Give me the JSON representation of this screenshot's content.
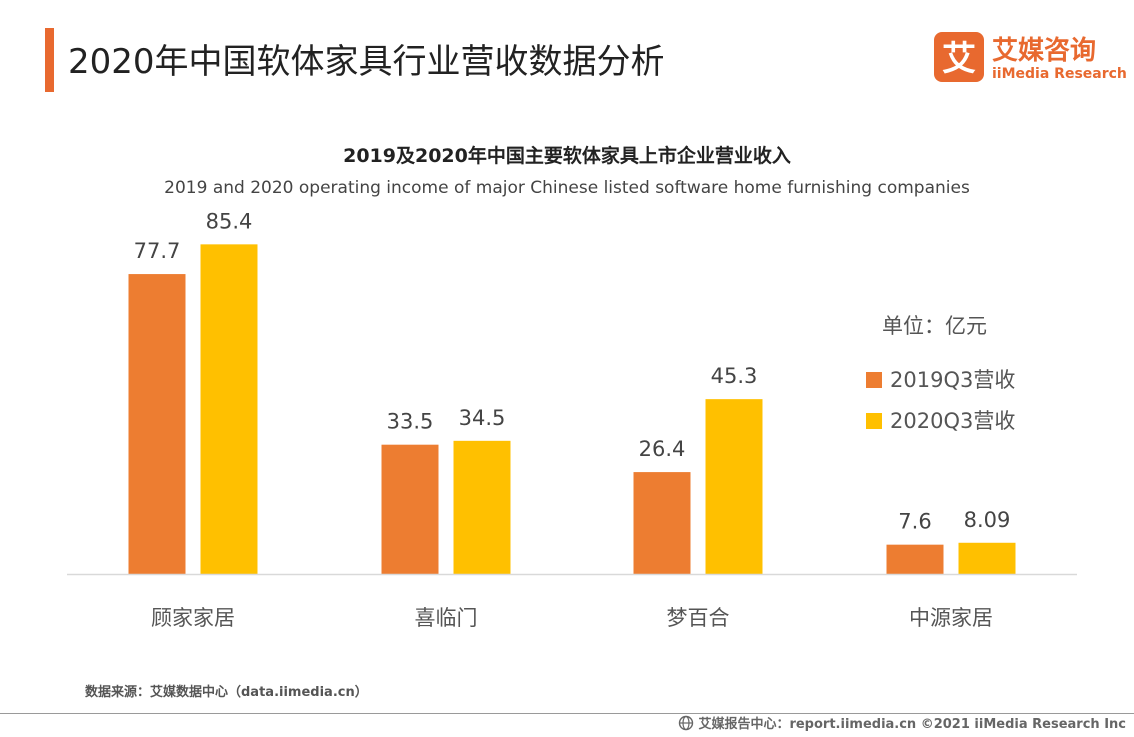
{
  "page_title": "2020年中国软体家具行业营收数据分析",
  "logo": {
    "cn": "艾媒咨询",
    "en": "iiMedia Research",
    "glyph": "艾"
  },
  "colors": {
    "accent": "#E8692F",
    "series_2019": "#ED7D31",
    "series_2020": "#FFC000",
    "axis": "#D9D9D9"
  },
  "unit": "单位：亿元",
  "chart_data": {
    "type": "bar",
    "title": "2019及2020年中国主要软体家具上市企业营业收入",
    "subtitle": "2019 and 2020 operating income of major Chinese listed software home furnishing companies",
    "categories": [
      "顾家家居",
      "喜临门",
      "梦百合",
      "中源家居"
    ],
    "series": [
      {
        "name": "2019Q3营收",
        "values": [
          77.7,
          33.5,
          26.4,
          7.6
        ],
        "labels": [
          "77.7",
          "33.5",
          "26.4",
          "7.6"
        ]
      },
      {
        "name": "2020Q3营收",
        "values": [
          85.4,
          34.5,
          45.3,
          8.09
        ],
        "labels": [
          "85.4",
          "34.5",
          "45.3",
          "8.09"
        ]
      }
    ],
    "xlabel": "",
    "ylabel": "",
    "ylim": [
      0,
      100
    ],
    "legend": "right"
  },
  "source": "数据来源：艾媒数据中心（data.iimedia.cn）",
  "footer": "艾媒报告中心：report.iimedia.cn  ©2021  iiMedia Research  Inc"
}
